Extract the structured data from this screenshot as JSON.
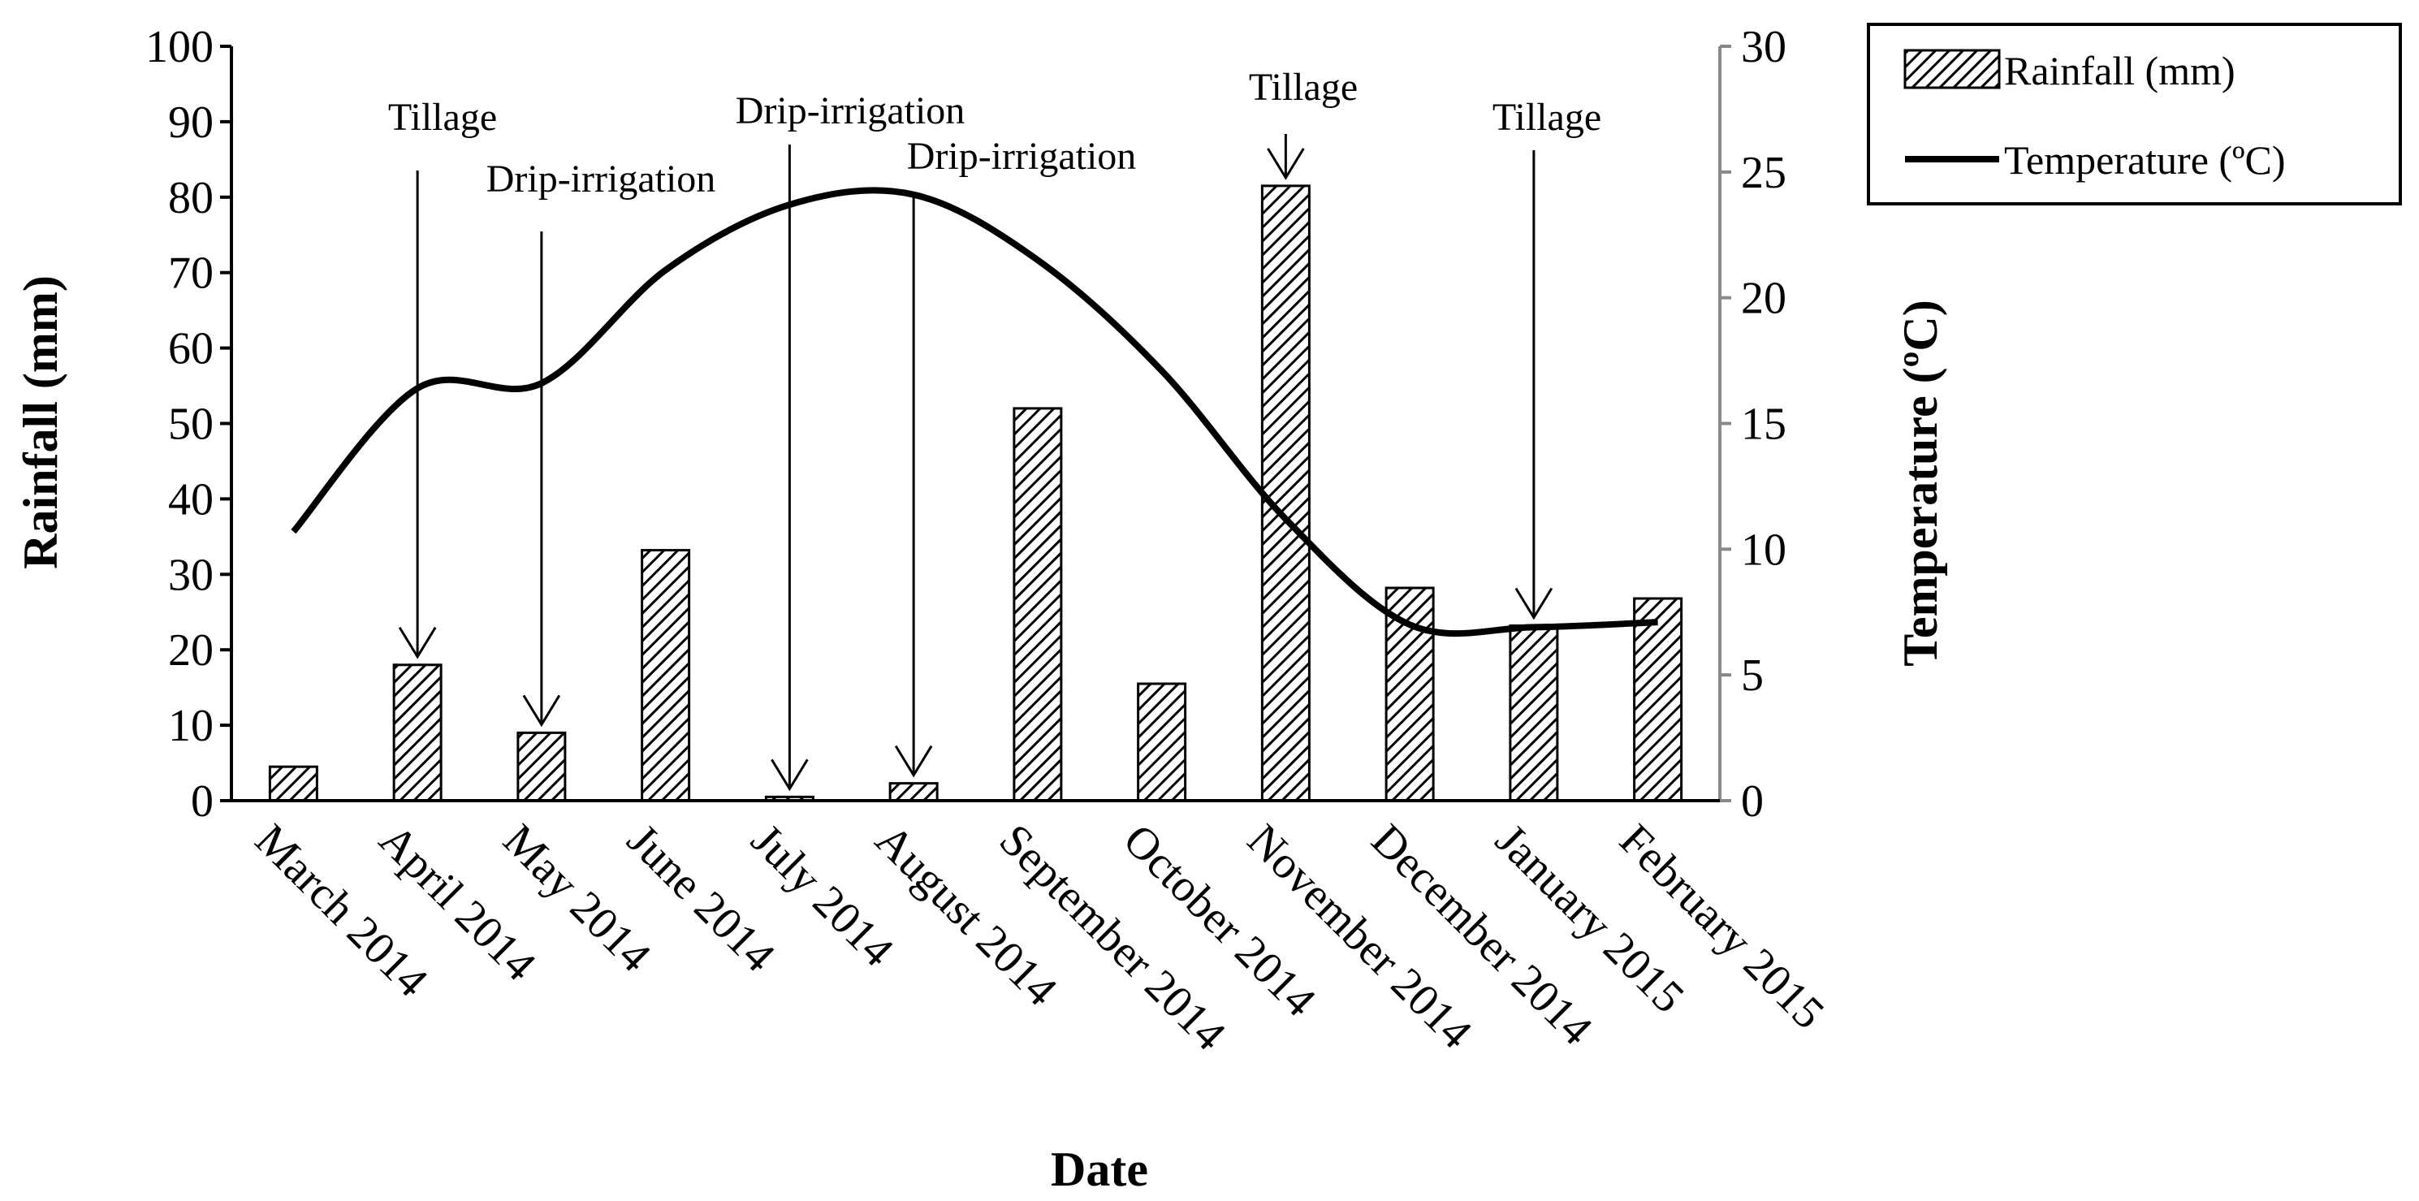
{
  "chart_data": {
    "type": "bar",
    "categories": [
      "March 2014",
      "April 2014",
      "May 2014",
      "June 2014",
      "July 2014",
      "August 2014",
      "September 2014",
      "October 2014",
      "November 2014",
      "December 2014",
      "January 2015",
      "February 2015"
    ],
    "series": [
      {
        "name": "Rainfall (mm)",
        "type": "bar",
        "axis": "left",
        "values": [
          4.5,
          18,
          9,
          33.2,
          0.5,
          2.3,
          52,
          15.5,
          81.5,
          28.2,
          23.2,
          26.8
        ]
      },
      {
        "name": "Temperature (ºC)",
        "type": "line",
        "axis": "right",
        "values": [
          10.7,
          16.4,
          16.6,
          21.1,
          23.7,
          24.1,
          21.5,
          17.1,
          11.2,
          7.0,
          6.9,
          7.1
        ]
      }
    ],
    "xlabel": "Date",
    "ylabel": "Rainfall (mm)",
    "y2label": "Temperature  (ºC)",
    "ylim": [
      0,
      100
    ],
    "y2lim": [
      0,
      30
    ],
    "yticks": [
      "0",
      "10",
      "20",
      "30",
      "40",
      "50",
      "60",
      "70",
      "80",
      "90",
      "100"
    ],
    "y2ticks": [
      "0",
      "5",
      "10",
      "15",
      "20",
      "25",
      "30"
    ],
    "annotations": [
      {
        "text": "Tillage",
        "category_index": 1
      },
      {
        "text": "Drip-irrigation",
        "category_index": 2
      },
      {
        "text": "Drip-irrigation",
        "category_index": 4
      },
      {
        "text": "Drip-irrigation",
        "category_index": 5
      },
      {
        "text": "Tillage",
        "category_index": 8
      },
      {
        "text": "Tillage",
        "category_index": 10
      }
    ],
    "legend_position": "top-right"
  }
}
